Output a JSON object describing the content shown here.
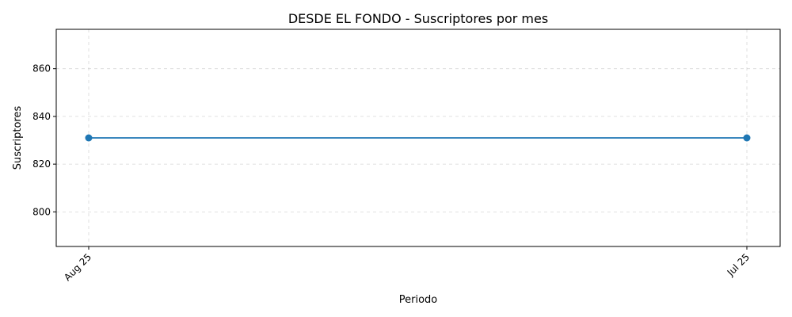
{
  "chart_data": {
    "type": "line",
    "title": "DESDE EL FONDO - Suscriptores por mes",
    "xlabel": "Periodo",
    "ylabel": "Suscriptores",
    "categories": [
      "Aug 25",
      "Jul 25"
    ],
    "series": [
      {
        "values": [
          831,
          831
        ],
        "color": "#1f77b4"
      }
    ],
    "yticks": [
      800,
      820,
      840,
      860
    ],
    "ylim": [
      785.5,
      876.5
    ],
    "grid": true,
    "legend": "none"
  }
}
